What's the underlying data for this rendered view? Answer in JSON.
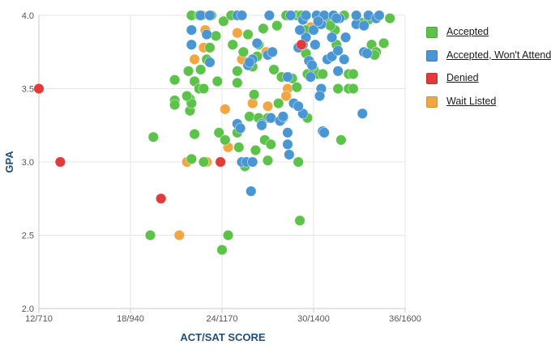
{
  "chart_data": {
    "type": "scatter",
    "xlabel": "ACT/SAT SCORE",
    "ylabel": "GPA",
    "xlim": [
      12,
      36
    ],
    "ylim": [
      2.0,
      4.0
    ],
    "x_ticks": [
      {
        "value": 12,
        "label": "12/710"
      },
      {
        "value": 18,
        "label": "18/940"
      },
      {
        "value": 24,
        "label": "24/1170"
      },
      {
        "value": 30,
        "label": "30/1400"
      },
      {
        "value": 36,
        "label": "36/1600"
      }
    ],
    "y_ticks": [
      {
        "value": 2.0,
        "label": "2.0"
      },
      {
        "value": 2.5,
        "label": "2.5"
      },
      {
        "value": 3.0,
        "label": "3.0"
      },
      {
        "value": 3.5,
        "label": "3.5"
      },
      {
        "value": 4.0,
        "label": "4.0"
      }
    ],
    "grid": true,
    "legend_position": "right",
    "series": [
      {
        "name": "Wait Listed",
        "color": "#f0a742",
        "points": [
          [
            24.2,
            3.36
          ],
          [
            23.0,
            3.0
          ],
          [
            24.4,
            3.1
          ],
          [
            21.7,
            3.0
          ],
          [
            22.2,
            3.7
          ],
          [
            22.8,
            3.78
          ],
          [
            22.9,
            3.9
          ],
          [
            22.5,
            4.0
          ],
          [
            22.7,
            4.0
          ],
          [
            25.0,
            3.88
          ],
          [
            25.3,
            3.7
          ],
          [
            26.0,
            3.4
          ],
          [
            27.0,
            3.38
          ],
          [
            26.9,
            3.75
          ],
          [
            28.3,
            3.5
          ],
          [
            28.2,
            3.45
          ],
          [
            30.4,
            3.98
          ],
          [
            29.8,
            3.92
          ],
          [
            21.2,
            2.5
          ],
          [
            31.0,
            3.95
          ]
        ]
      },
      {
        "name": "Accepted",
        "color": "#5cc24a",
        "points": [
          [
            19.3,
            2.5
          ],
          [
            19.5,
            3.17
          ],
          [
            20.9,
            3.56
          ],
          [
            20.9,
            3.42
          ],
          [
            20.9,
            3.39
          ],
          [
            21.8,
            3.62
          ],
          [
            21.9,
            3.43
          ],
          [
            21.9,
            3.35
          ],
          [
            22.0,
            4.0
          ],
          [
            22.5,
            4.0
          ],
          [
            22.2,
            3.55
          ],
          [
            22.5,
            3.5
          ],
          [
            22.8,
            3.5
          ],
          [
            22.2,
            3.19
          ],
          [
            22.8,
            3.0
          ],
          [
            22.0,
            3.02
          ],
          [
            23.6,
            3.86
          ],
          [
            23.0,
            3.7
          ],
          [
            22.6,
            3.63
          ],
          [
            23.7,
            3.55
          ],
          [
            23.8,
            3.2
          ],
          [
            23.9,
            3.0
          ],
          [
            24.2,
            3.15
          ],
          [
            24.4,
            2.5
          ],
          [
            24.0,
            2.4
          ],
          [
            24.1,
            3.96
          ],
          [
            24.7,
            3.8
          ],
          [
            25.0,
            3.62
          ],
          [
            25.0,
            3.2
          ],
          [
            25.1,
            3.1
          ],
          [
            25.0,
            3.54
          ],
          [
            25.4,
            3.75
          ],
          [
            25.7,
            3.87
          ],
          [
            26.0,
            3.65
          ],
          [
            25.8,
            3.31
          ],
          [
            25.5,
            2.97
          ],
          [
            26.1,
            3.46
          ],
          [
            26.4,
            3.8
          ],
          [
            26.7,
            3.91
          ],
          [
            26.4,
            3.3
          ],
          [
            26.8,
            3.15
          ],
          [
            27.0,
            3.3
          ],
          [
            27.0,
            3.01
          ],
          [
            27.2,
            3.12
          ],
          [
            27.4,
            3.63
          ],
          [
            27.6,
            3.93
          ],
          [
            27.9,
            3.58
          ],
          [
            28.0,
            3.3
          ],
          [
            28.6,
            3.57
          ],
          [
            28.9,
            3.51
          ],
          [
            28.2,
            4.0
          ],
          [
            28.9,
            4.0
          ],
          [
            29.2,
            4.0
          ],
          [
            29.5,
            3.9
          ],
          [
            29.5,
            3.74
          ],
          [
            29.6,
            3.3
          ],
          [
            29.6,
            3.6
          ],
          [
            30.0,
            3.63
          ],
          [
            30.3,
            3.6
          ],
          [
            30.6,
            3.6
          ],
          [
            31.0,
            3.95
          ],
          [
            31.5,
            3.8
          ],
          [
            31.4,
            3.9
          ],
          [
            32.0,
            4.0
          ],
          [
            32.3,
            3.6
          ],
          [
            32.6,
            3.6
          ],
          [
            32.3,
            3.5
          ],
          [
            31.6,
            3.5
          ],
          [
            32.6,
            3.5
          ],
          [
            31.8,
            3.15
          ],
          [
            29.1,
            2.6
          ],
          [
            29.0,
            3.0
          ],
          [
            27.7,
            3.4
          ],
          [
            26.2,
            3.08
          ],
          [
            33.2,
            3.95
          ],
          [
            33.8,
            3.8
          ],
          [
            34.6,
            3.81
          ],
          [
            34.1,
            3.75
          ],
          [
            34.0,
            3.73
          ],
          [
            33.6,
            3.97
          ],
          [
            35.0,
            3.98
          ],
          [
            31.1,
            3.93
          ],
          [
            22.0,
            3.4
          ],
          [
            23.2,
            3.78
          ],
          [
            24.6,
            4.0
          ],
          [
            23.3,
            4.0
          ],
          [
            21.7,
            3.45
          ],
          [
            26.3,
            3.72
          ]
        ]
      },
      {
        "name": "Accepted, Won't Attend",
        "color": "#4a96d2",
        "points": [
          [
            22.0,
            3.8
          ],
          [
            22.0,
            3.9
          ],
          [
            22.6,
            4.0
          ],
          [
            23.0,
            3.87
          ],
          [
            23.2,
            3.68
          ],
          [
            23.2,
            4.0
          ],
          [
            25.0,
            4.0
          ],
          [
            25.3,
            4.0
          ],
          [
            25.7,
            3.66
          ],
          [
            26.0,
            3.7
          ],
          [
            26.3,
            3.81
          ],
          [
            25.0,
            3.26
          ],
          [
            25.2,
            3.23
          ],
          [
            25.3,
            3.0
          ],
          [
            25.6,
            3.0
          ],
          [
            25.9,
            2.8
          ],
          [
            26.0,
            3.0
          ],
          [
            26.6,
            3.26
          ],
          [
            27.2,
            3.3
          ],
          [
            27.0,
            3.73
          ],
          [
            27.3,
            3.75
          ],
          [
            27.8,
            3.28
          ],
          [
            28.0,
            3.31
          ],
          [
            28.3,
            3.2
          ],
          [
            28.3,
            3.12
          ],
          [
            28.4,
            3.05
          ],
          [
            28.5,
            4.0
          ],
          [
            28.3,
            3.58
          ],
          [
            28.7,
            3.4
          ],
          [
            29.3,
            3.33
          ],
          [
            29.0,
            3.38
          ],
          [
            29.0,
            3.78
          ],
          [
            29.3,
            3.8
          ],
          [
            29.5,
            3.85
          ],
          [
            29.7,
            3.69
          ],
          [
            29.3,
            3.97
          ],
          [
            29.5,
            4.0
          ],
          [
            29.8,
            3.58
          ],
          [
            29.9,
            3.66
          ],
          [
            30.0,
            3.9
          ],
          [
            30.2,
            4.0
          ],
          [
            30.5,
            3.94
          ],
          [
            30.7,
            4.0
          ],
          [
            30.3,
            3.96
          ],
          [
            30.5,
            3.5
          ],
          [
            30.4,
            3.45
          ],
          [
            30.6,
            3.21
          ],
          [
            30.9,
            3.7
          ],
          [
            31.2,
            3.72
          ],
          [
            31.2,
            3.85
          ],
          [
            31.3,
            4.0
          ],
          [
            31.7,
            3.98
          ],
          [
            31.6,
            3.62
          ],
          [
            32.0,
            3.7
          ],
          [
            32.1,
            3.85
          ],
          [
            32.8,
            3.94
          ],
          [
            32.8,
            4.0
          ],
          [
            33.3,
            3.93
          ],
          [
            33.6,
            4.0
          ],
          [
            33.3,
            3.75
          ],
          [
            33.5,
            3.74
          ],
          [
            33.2,
            3.33
          ],
          [
            34.1,
            3.98
          ],
          [
            34.3,
            4.0
          ],
          [
            26.6,
            3.25
          ],
          [
            27.1,
            4.0
          ],
          [
            29.1,
            3.9
          ],
          [
            30.1,
            3.8
          ],
          [
            31.6,
            3.76
          ],
          [
            30.7,
            3.2
          ],
          [
            25.8,
            3.68
          ],
          [
            31.5,
            3.98
          ]
        ]
      },
      {
        "name": "Denied",
        "color": "#e03a3a",
        "points": [
          [
            12.0,
            3.5
          ],
          [
            13.4,
            3.0
          ],
          [
            20.0,
            2.75
          ],
          [
            23.9,
            3.0
          ],
          [
            29.2,
            3.8
          ]
        ]
      }
    ],
    "legend_order": [
      "Accepted",
      "Accepted, Won't Attend",
      "Denied",
      "Wait Listed"
    ]
  }
}
